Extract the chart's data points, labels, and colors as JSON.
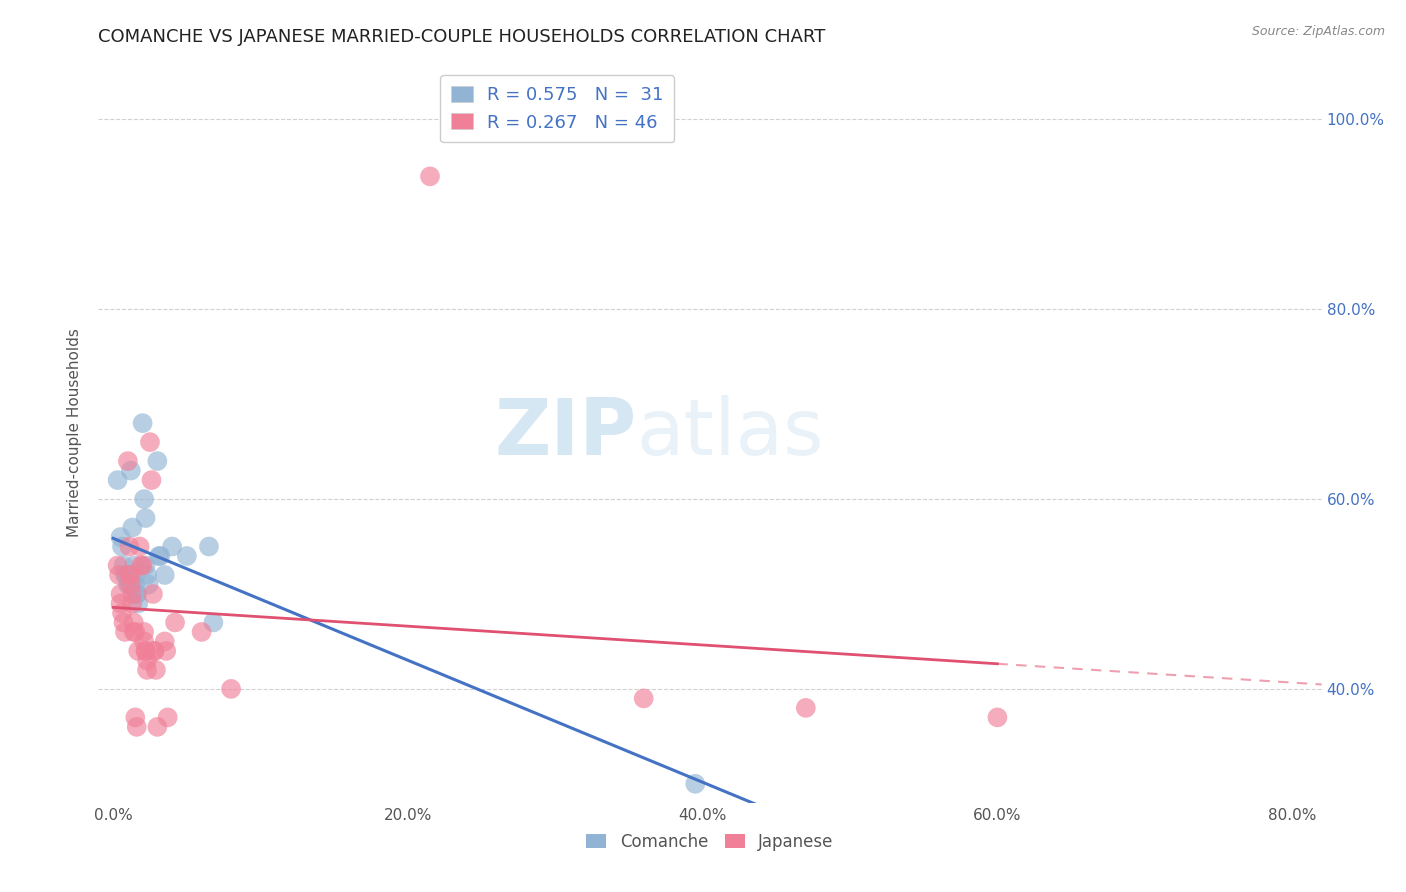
{
  "title": "COMANCHE VS JAPANESE MARRIED-COUPLE HOUSEHOLDS CORRELATION CHART",
  "source": "Source: ZipAtlas.com",
  "ylabel": "Married-couple Households",
  "xlabel_ticks": [
    "0.0%",
    "20.0%",
    "40.0%",
    "60.0%",
    "80.0%"
  ],
  "ylabel_ticks": [
    "40.0%",
    "60.0%",
    "80.0%",
    "100.0%"
  ],
  "xlim": [
    -0.01,
    0.82
  ],
  "ylim": [
    0.28,
    1.06
  ],
  "comanche_color": "#92b4d4",
  "japanese_color": "#f08098",
  "regression_blue": "#4472c4",
  "regression_pink": "#e05070",
  "watermark_zip": "ZIP",
  "watermark_atlas": "atlas",
  "legend_r1": "R = 0.575   N =  31",
  "legend_r2": "R = 0.267   N = 46",
  "legend_color": "#4472c4",
  "comanche_points": [
    [
      0.003,
      0.62
    ],
    [
      0.005,
      0.56
    ],
    [
      0.006,
      0.55
    ],
    [
      0.007,
      0.53
    ],
    [
      0.008,
      0.52
    ],
    [
      0.009,
      0.52
    ],
    [
      0.01,
      0.51
    ],
    [
      0.011,
      0.51
    ],
    [
      0.012,
      0.63
    ],
    [
      0.013,
      0.57
    ],
    [
      0.014,
      0.53
    ],
    [
      0.015,
      0.52
    ],
    [
      0.015,
      0.51
    ],
    [
      0.016,
      0.5
    ],
    [
      0.016,
      0.5
    ],
    [
      0.017,
      0.49
    ],
    [
      0.02,
      0.68
    ],
    [
      0.021,
      0.6
    ],
    [
      0.022,
      0.58
    ],
    [
      0.022,
      0.53
    ],
    [
      0.023,
      0.52
    ],
    [
      0.024,
      0.51
    ],
    [
      0.03,
      0.64
    ],
    [
      0.031,
      0.54
    ],
    [
      0.032,
      0.54
    ],
    [
      0.035,
      0.52
    ],
    [
      0.04,
      0.55
    ],
    [
      0.05,
      0.54
    ],
    [
      0.065,
      0.55
    ],
    [
      0.068,
      0.47
    ],
    [
      0.395,
      0.3
    ]
  ],
  "japanese_points": [
    [
      0.003,
      0.53
    ],
    [
      0.004,
      0.52
    ],
    [
      0.005,
      0.5
    ],
    [
      0.005,
      0.49
    ],
    [
      0.006,
      0.48
    ],
    [
      0.007,
      0.47
    ],
    [
      0.008,
      0.46
    ],
    [
      0.01,
      0.64
    ],
    [
      0.011,
      0.55
    ],
    [
      0.011,
      0.52
    ],
    [
      0.012,
      0.52
    ],
    [
      0.012,
      0.51
    ],
    [
      0.013,
      0.5
    ],
    [
      0.013,
      0.49
    ],
    [
      0.014,
      0.47
    ],
    [
      0.014,
      0.46
    ],
    [
      0.015,
      0.46
    ],
    [
      0.015,
      0.37
    ],
    [
      0.016,
      0.36
    ],
    [
      0.017,
      0.44
    ],
    [
      0.018,
      0.55
    ],
    [
      0.019,
      0.53
    ],
    [
      0.02,
      0.53
    ],
    [
      0.021,
      0.46
    ],
    [
      0.021,
      0.45
    ],
    [
      0.022,
      0.44
    ],
    [
      0.022,
      0.44
    ],
    [
      0.023,
      0.43
    ],
    [
      0.023,
      0.42
    ],
    [
      0.025,
      0.66
    ],
    [
      0.026,
      0.62
    ],
    [
      0.027,
      0.5
    ],
    [
      0.028,
      0.44
    ],
    [
      0.028,
      0.44
    ],
    [
      0.029,
      0.42
    ],
    [
      0.03,
      0.36
    ],
    [
      0.035,
      0.45
    ],
    [
      0.036,
      0.44
    ],
    [
      0.037,
      0.37
    ],
    [
      0.042,
      0.47
    ],
    [
      0.06,
      0.46
    ],
    [
      0.08,
      0.4
    ],
    [
      0.215,
      0.94
    ],
    [
      0.36,
      0.39
    ],
    [
      0.47,
      0.38
    ],
    [
      0.6,
      0.37
    ]
  ],
  "xtick_vals": [
    0.0,
    0.2,
    0.4,
    0.6,
    0.8
  ],
  "ytick_vals": [
    0.4,
    0.6,
    0.8,
    1.0
  ]
}
